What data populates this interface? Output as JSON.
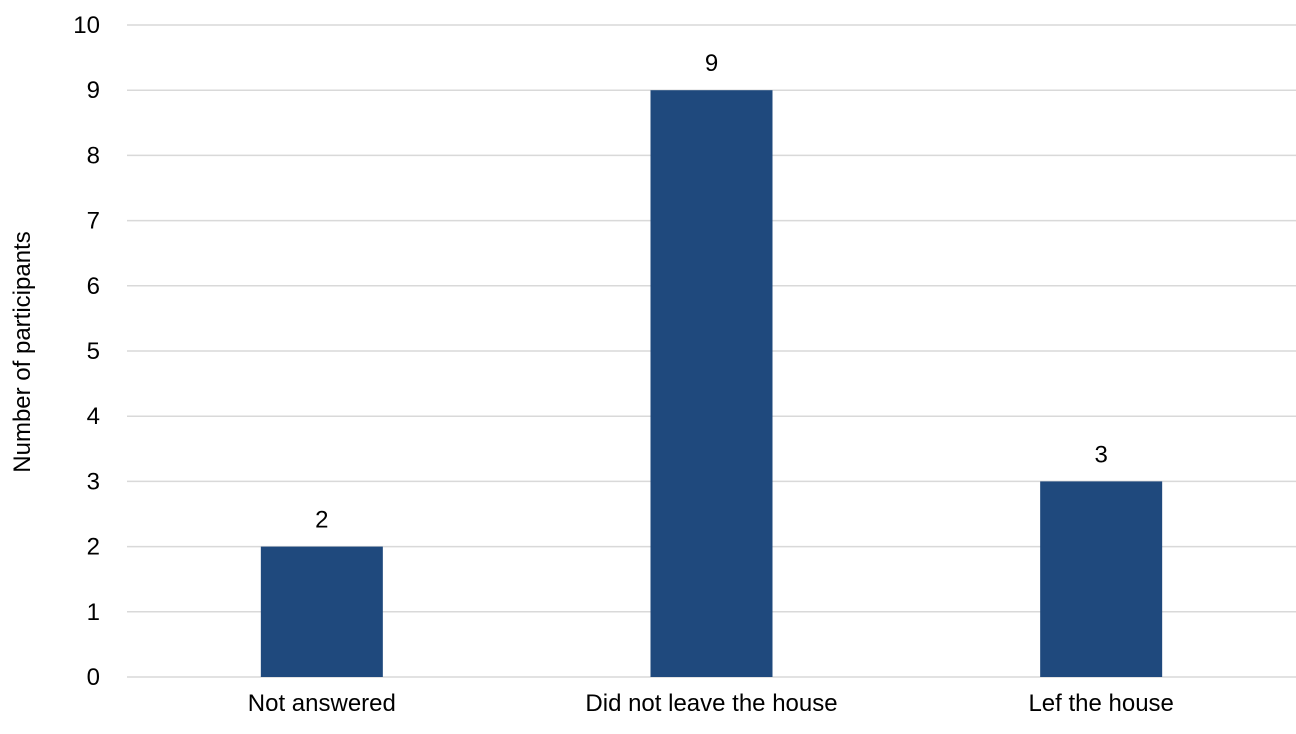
{
  "chart_data": {
    "type": "bar",
    "categories": [
      "Not answered",
      "Did not leave the house",
      "Lef the house"
    ],
    "values": [
      2,
      9,
      3
    ],
    "data_labels": [
      "2",
      "9",
      "3"
    ],
    "title": "",
    "xlabel": "",
    "ylabel": "Number of participants",
    "ylim": [
      0,
      10
    ],
    "yticks": [
      "0",
      "1",
      "2",
      "3",
      "4",
      "5",
      "6",
      "7",
      "8",
      "9",
      "10"
    ],
    "grid": true,
    "legend": "none",
    "bar_color": "#1F497D",
    "grid_color": "#D9D9D9"
  }
}
